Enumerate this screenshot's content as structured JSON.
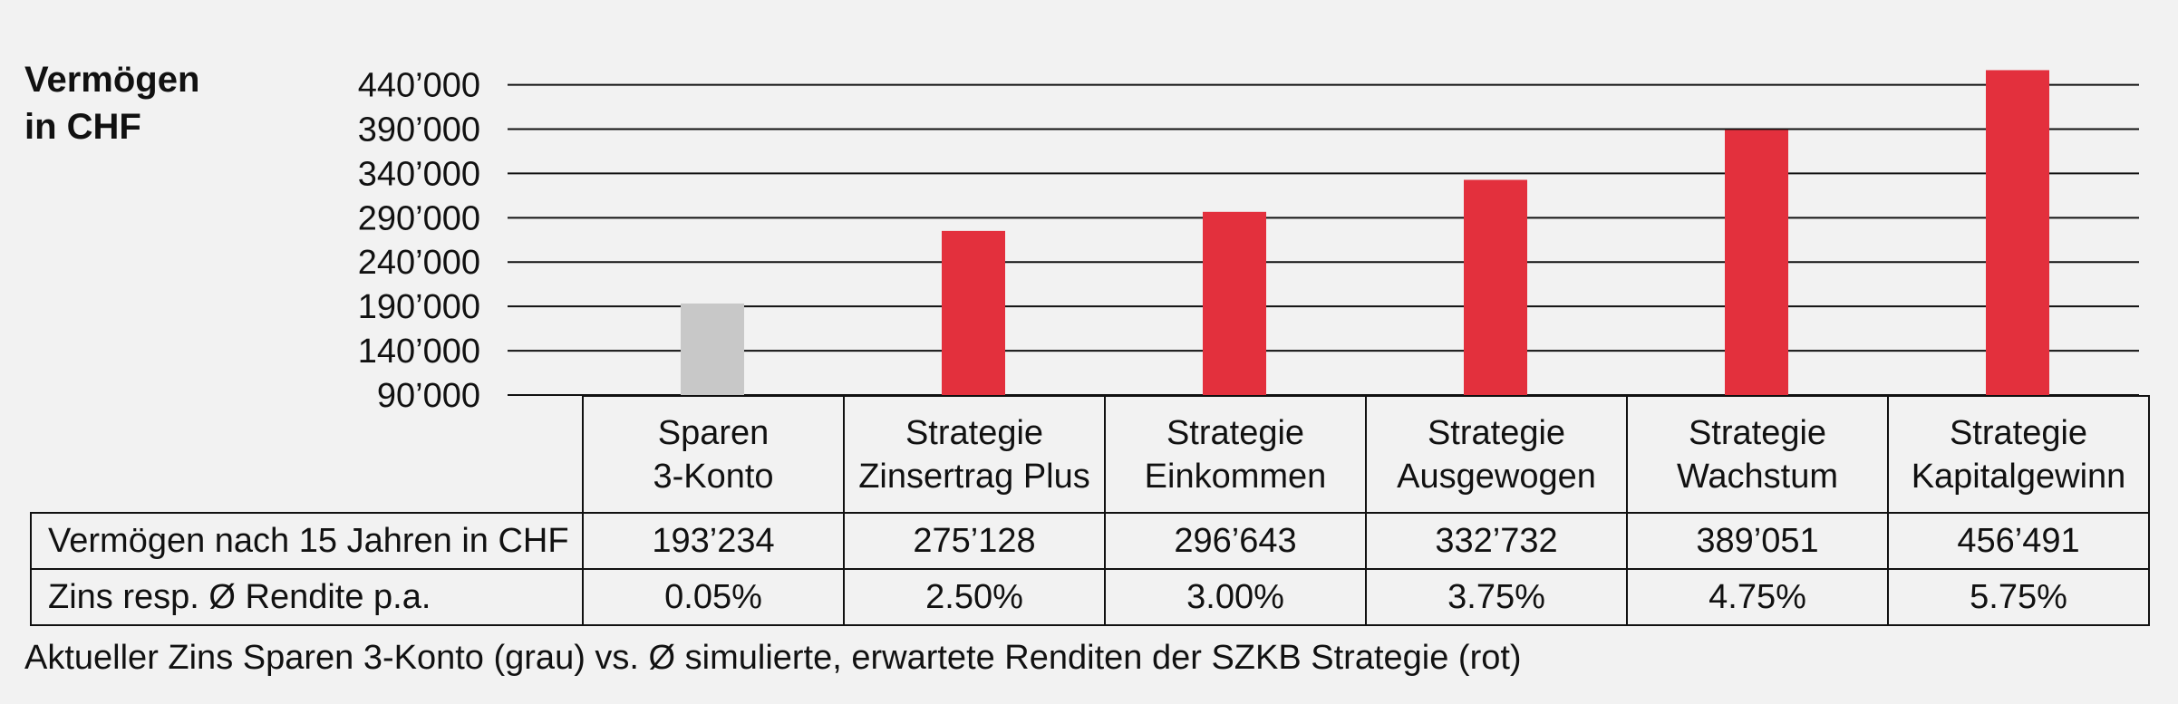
{
  "chart_data": {
    "type": "bar",
    "ylabel_lines": [
      "Vermögen",
      "in CHF"
    ],
    "yticks": [
      "90’000",
      "140’000",
      "190’000",
      "240’000",
      "290’000",
      "340’000",
      "390’000",
      "440’000"
    ],
    "ytick_values": [
      90000,
      140000,
      190000,
      240000,
      290000,
      340000,
      390000,
      440000
    ],
    "ylim": [
      90000,
      460000
    ],
    "grid": true,
    "categories": [
      [
        "Sparen",
        "3-Konto"
      ],
      [
        "Strategie",
        "Zinsertrag Plus"
      ],
      [
        "Strategie",
        "Einkommen"
      ],
      [
        "Strategie",
        "Ausgewogen"
      ],
      [
        "Strategie",
        "Wachstum"
      ],
      [
        "Strategie",
        "Kapitalgewinn"
      ]
    ],
    "values": [
      193234,
      275128,
      296643,
      332732,
      389051,
      456491
    ],
    "colors": [
      "#c8c8c8",
      "#e3303d",
      "#e3303d",
      "#e3303d",
      "#e3303d",
      "#e3303d"
    ]
  },
  "table": {
    "rows": [
      {
        "label": "Vermögen nach 15 Jahren in CHF",
        "cells": [
          "193’234",
          "275’128",
          "296’643",
          "332’732",
          "389’051",
          "456’491"
        ]
      },
      {
        "label": "Zins resp. Ø Rendite p.a.",
        "cells": [
          "0.05%",
          "2.50%",
          "3.00%",
          "3.75%",
          "4.75%",
          "5.75%"
        ]
      }
    ]
  },
  "footnote": "Aktueller Zins Sparen 3-Konto (grau) vs. Ø simulierte, erwartete Renditen der SZKB Strategie (rot)"
}
